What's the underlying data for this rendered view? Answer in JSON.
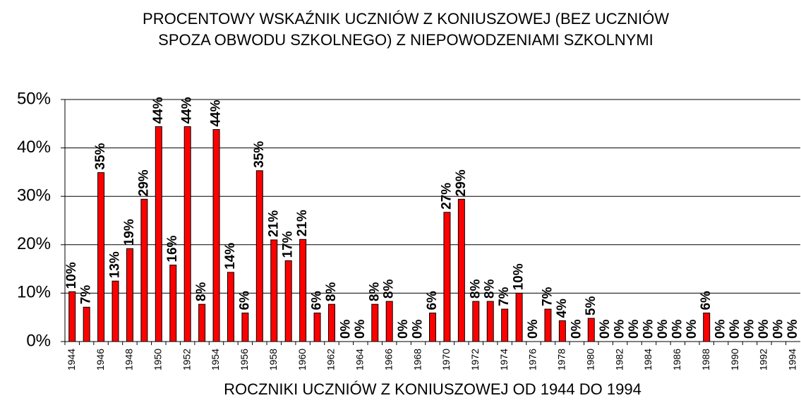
{
  "chart_data": {
    "type": "bar",
    "title": [
      "PROCENTOWY WSKAŹNIK UCZNIÓW Z KONIUSZOWEJ (BEZ UCZNIÓW",
      "SPOZA OBWODU SZKOLNEGO) Z NIEPOWODZENIAMI SZKOLNYMI"
    ],
    "x_label": "ROCZNIKI UCZNIÓW Z KONIUSZOWEJ OD 1944 DO 1994",
    "categories": [
      "1944",
      null,
      "1946",
      null,
      "1948",
      null,
      "1950",
      null,
      "1952",
      null,
      "1954",
      null,
      "1956",
      null,
      "1958",
      null,
      "1960",
      null,
      "1962",
      null,
      "1964",
      null,
      "1966",
      null,
      "1968",
      null,
      "1970",
      null,
      "1972",
      null,
      "1974",
      null,
      "1976",
      null,
      "1978",
      null,
      "1980",
      null,
      "1982",
      null,
      "1984",
      null,
      "1986",
      null,
      "1988",
      null,
      "1990",
      null,
      "1992",
      null,
      "1994"
    ],
    "values": [
      10.3,
      7.1,
      34.9,
      12.5,
      19.2,
      29.4,
      44.4,
      15.8,
      44.4,
      7.7,
      43.8,
      14.3,
      5.9,
      35.3,
      21.0,
      16.7,
      21.1,
      5.9,
      7.7,
      0,
      0,
      7.7,
      8.3,
      0,
      0,
      5.9,
      26.7,
      29.4,
      8.3,
      8.3,
      6.7,
      10.0,
      0,
      6.7,
      4.3,
      0,
      4.8,
      0,
      0,
      0,
      0,
      0,
      0,
      0,
      5.9,
      0,
      0,
      0,
      0,
      0,
      0
    ],
    "value_labels": [
      "10%",
      "7%",
      "35%",
      "13%",
      "19%",
      "29%",
      "44%",
      "16%",
      "44%",
      "8%",
      "44%",
      "14%",
      "6%",
      "35%",
      "21%",
      "17%",
      "21%",
      "6%",
      "8%",
      "0%",
      "0%",
      "8%",
      "8%",
      "0%",
      "0%",
      "6%",
      "27%",
      "29%",
      "8%",
      "8%",
      "7%",
      "10%",
      "0%",
      "7%",
      "4%",
      "0%",
      "5%",
      "0%",
      "0%",
      "0%",
      "0%",
      "0%",
      "0%",
      "0%",
      "6%",
      "0%",
      "0%",
      "0%",
      "0%",
      "0%",
      "0%"
    ],
    "color": "#ff0000",
    "ylim": [
      0,
      50
    ],
    "yticks": [
      {
        "value": 0,
        "label": "0%"
      },
      {
        "value": 10,
        "label": "10%"
      },
      {
        "value": 20,
        "label": "20%"
      },
      {
        "value": 30,
        "label": "30%"
      },
      {
        "value": 40,
        "label": "40%"
      },
      {
        "value": 50,
        "label": "50%"
      }
    ],
    "grid": true
  }
}
